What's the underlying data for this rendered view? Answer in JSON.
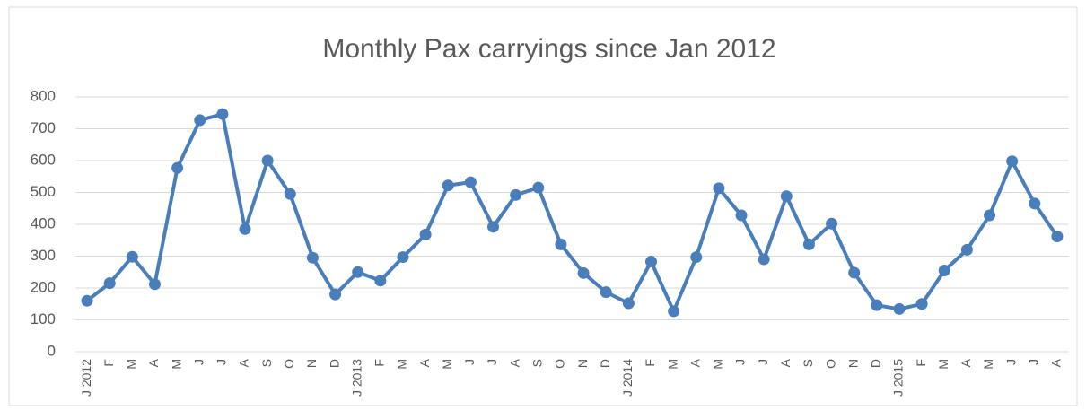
{
  "chart_data": {
    "type": "line",
    "title": "Monthly Pax carryings since Jan 2012",
    "categories": [
      "J 2012",
      "F",
      "M",
      "A",
      "M",
      "J",
      "J",
      "A",
      "S",
      "O",
      "N",
      "D",
      "J 2013",
      "F",
      "M",
      "A",
      "M",
      "J",
      "J",
      "A",
      "S",
      "O",
      "N",
      "D",
      "J 2014",
      "F",
      "M",
      "A",
      "M",
      "J",
      "J",
      "A",
      "S",
      "O",
      "N",
      "D",
      "J 2015",
      "F",
      "M",
      "A",
      "M",
      "J",
      "J",
      "A"
    ],
    "series": [
      {
        "name": "Pax",
        "color": "#4a7ebb",
        "values": [
          160,
          215,
          298,
          212,
          577,
          727,
          746,
          385,
          600,
          495,
          295,
          180,
          250,
          223,
          297,
          368,
          522,
          532,
          392,
          492,
          515,
          337,
          247,
          187,
          152,
          283,
          127,
          297,
          513,
          428,
          290,
          488,
          337,
          402,
          248,
          146,
          134,
          150,
          255,
          320,
          428,
          598,
          465,
          362
        ]
      }
    ],
    "ylim": [
      0,
      800
    ],
    "yticks": [
      0,
      100,
      200,
      300,
      400,
      500,
      600,
      700,
      800
    ],
    "grid": true
  }
}
